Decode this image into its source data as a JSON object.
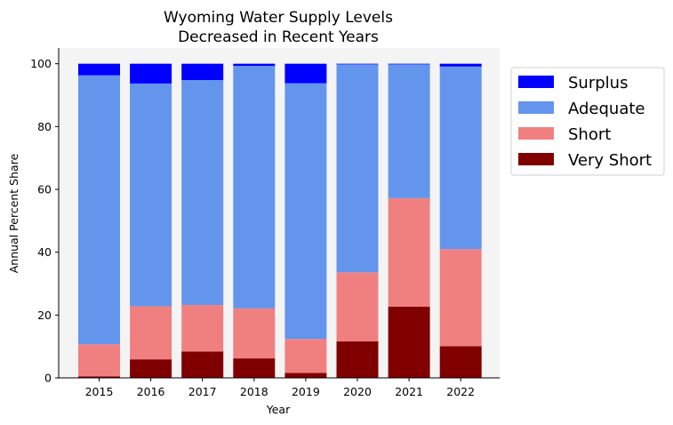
{
  "chart_data": {
    "type": "bar",
    "stacked": true,
    "title": "Wyoming Water Supply Levels\nDecreased in Recent Years",
    "xlabel": "Year",
    "ylabel": "Annual Percent Share",
    "categories": [
      "2015",
      "2016",
      "2017",
      "2018",
      "2019",
      "2020",
      "2021",
      "2022"
    ],
    "ylim": [
      0,
      105
    ],
    "yticks": [
      0,
      20,
      40,
      60,
      80,
      100
    ],
    "grid": false,
    "legend_position": "outside-right",
    "plot_background": "#f4f4f4",
    "series": [
      {
        "name": "Very Short",
        "color": "#800000",
        "values": [
          0.5,
          5.9,
          8.4,
          6.2,
          1.6,
          11.6,
          22.7,
          10.1
        ]
      },
      {
        "name": "Short",
        "color": "#f08080",
        "values": [
          10.2,
          16.9,
          14.8,
          15.9,
          10.8,
          22.0,
          34.5,
          30.9
        ]
      },
      {
        "name": "Adequate",
        "color": "#6495ed",
        "values": [
          85.6,
          70.9,
          71.6,
          77.2,
          81.4,
          66.2,
          42.6,
          58.1
        ]
      },
      {
        "name": "Surplus",
        "color": "#0000ff",
        "values": [
          3.7,
          6.3,
          5.2,
          0.7,
          6.2,
          0.2,
          0.2,
          0.9
        ]
      }
    ],
    "legend_order": [
      "Surplus",
      "Adequate",
      "Short",
      "Very Short"
    ]
  }
}
